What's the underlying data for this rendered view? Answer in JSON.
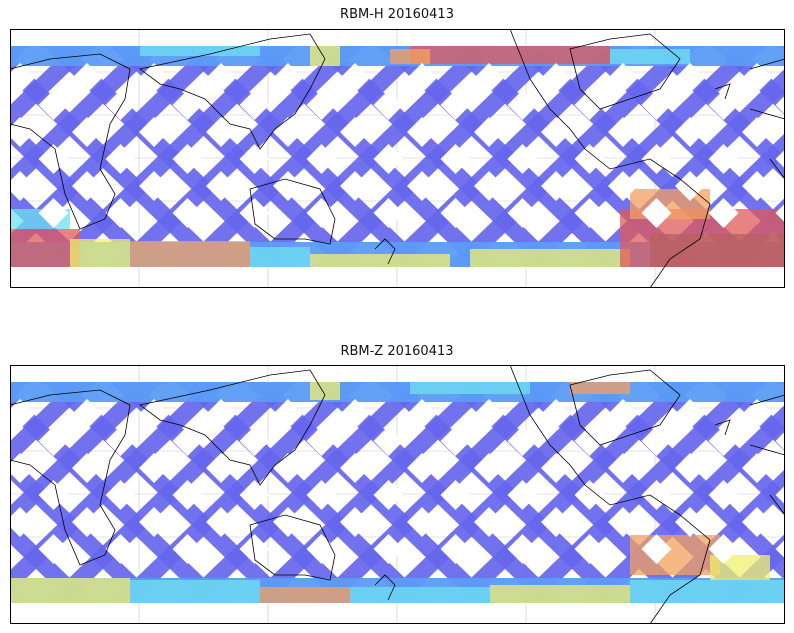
{
  "panels": [
    {
      "title": "RBM-H 20160413",
      "swath_palette": {
        "low": "#6666ee",
        "low_mid": "#5b9cf5",
        "mid": "#6fe0f0",
        "mid_high": "#f0f070",
        "high": "#f4a060",
        "max": "#e05a5a",
        "saturated": "#b86060"
      }
    },
    {
      "title": "RBM-Z 20160413",
      "swath_palette": {
        "low": "#6666ee",
        "low_mid": "#5b9cf5",
        "mid": "#6fe0f0",
        "mid_high": "#f0f070",
        "high": "#f4a060",
        "max": "#e05a5a"
      }
    }
  ],
  "map": {
    "projection": "equirectangular, Pacific-centered",
    "coastline_color": "#000000",
    "gridline_color": "#c8c8c8",
    "background": "#ffffff"
  }
}
